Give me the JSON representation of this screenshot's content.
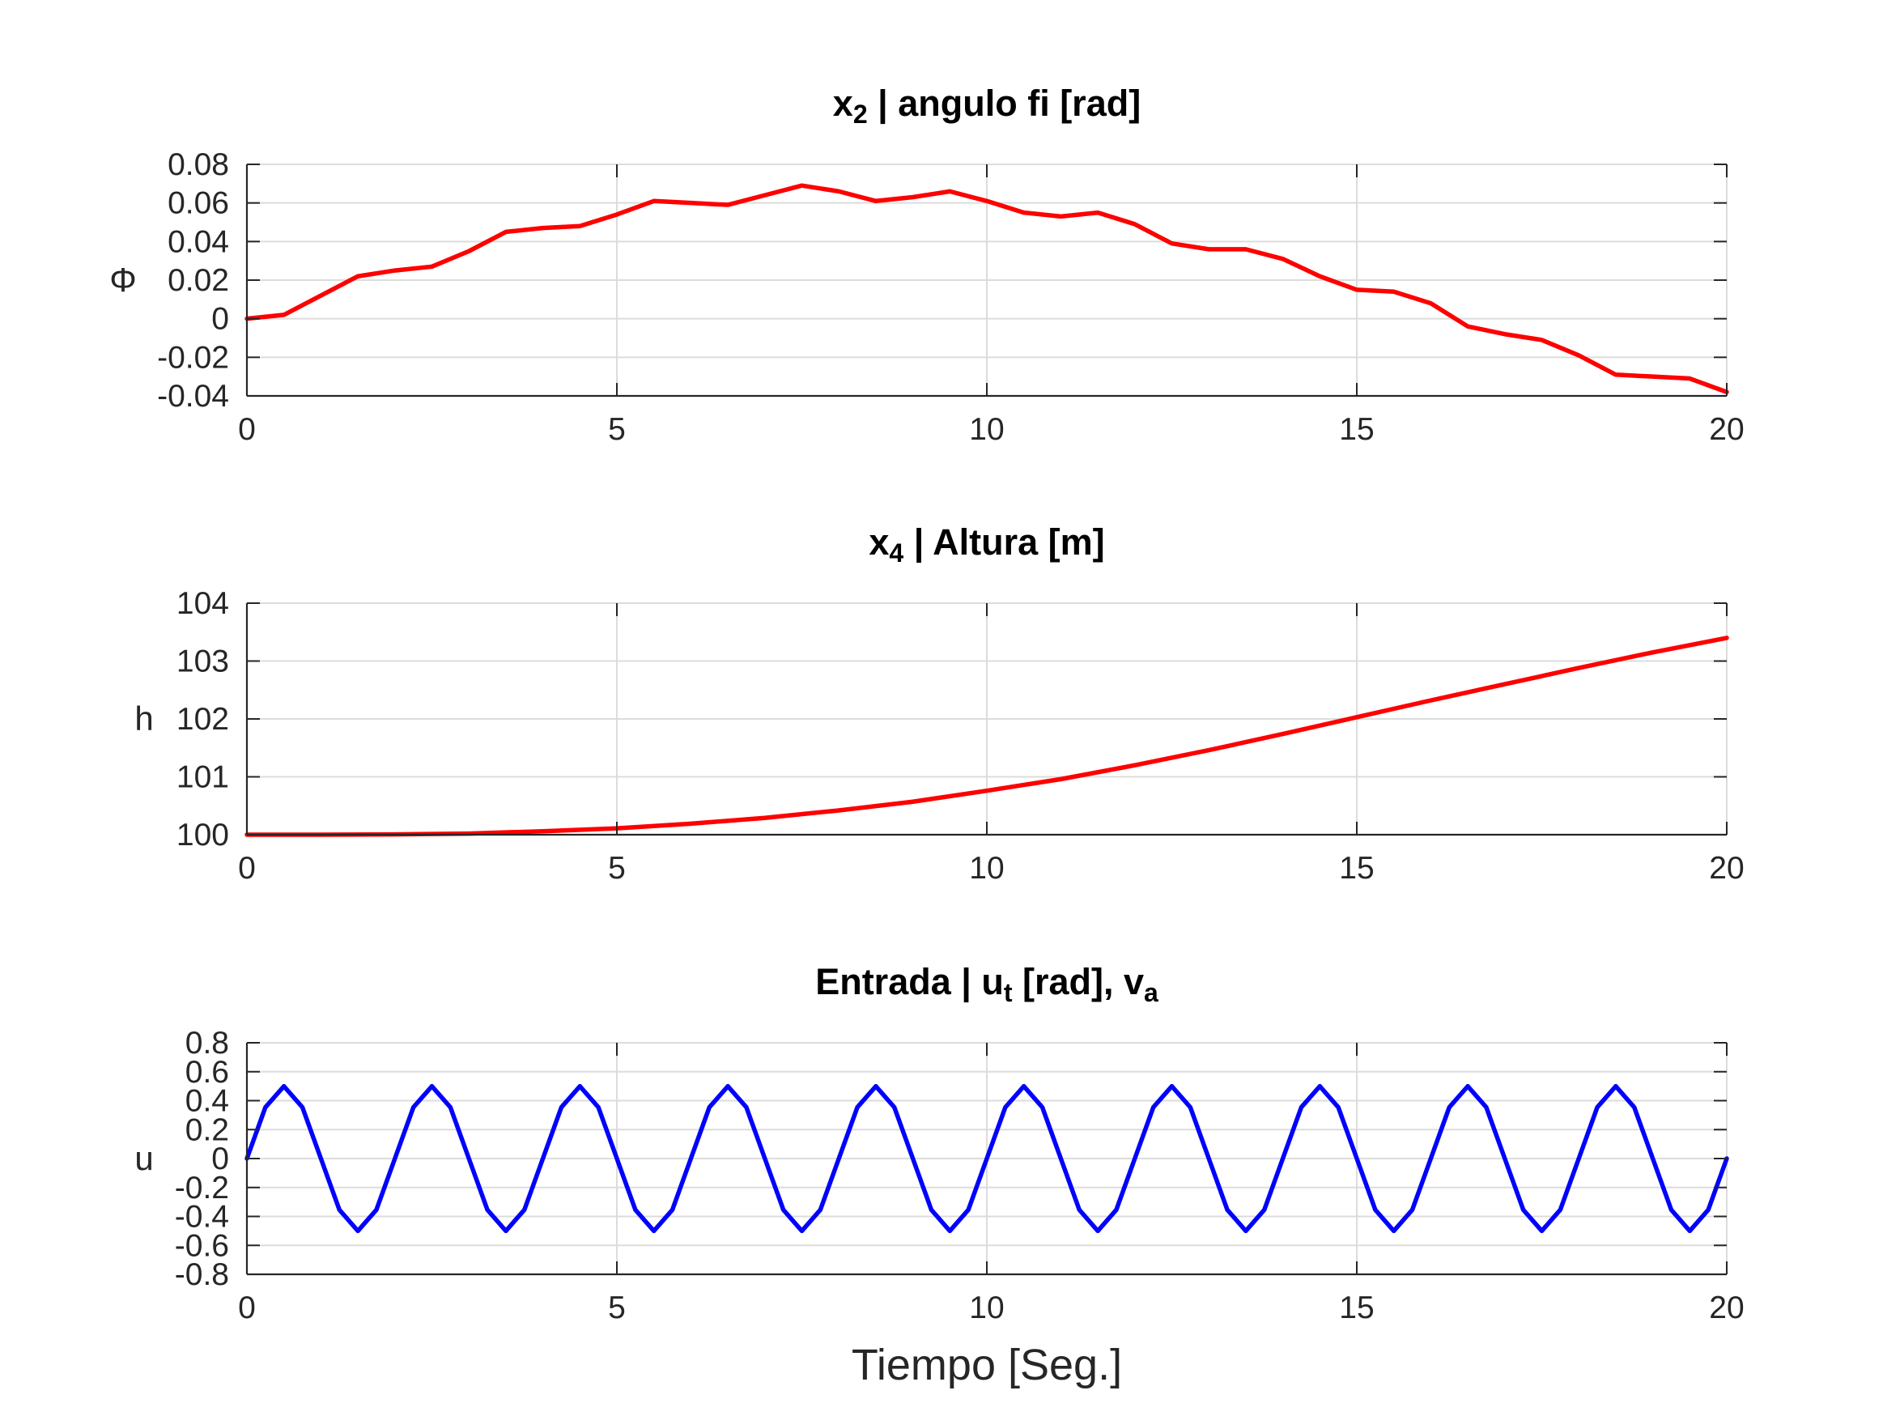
{
  "chart_data": [
    {
      "type": "line",
      "title_parts": [
        {
          "text": "x",
          "sub": false
        },
        {
          "text": "2",
          "sub": true
        },
        {
          "text": " | angulo fi [rad]",
          "sub": false
        }
      ],
      "xlabel": "",
      "ylabel": "Φ",
      "xlim": [
        0,
        20
      ],
      "ylim": [
        -0.04,
        0.08
      ],
      "xticks": [
        0,
        5,
        10,
        15,
        20
      ],
      "xtick_labels": [
        "0",
        "5",
        "10",
        "15",
        "20"
      ],
      "yticks": [
        -0.04,
        -0.02,
        0,
        0.02,
        0.04,
        0.06,
        0.08
      ],
      "ytick_labels": [
        "-0.04",
        "-0.02",
        "0",
        "0.02",
        "0.04",
        "0.06",
        "0.08"
      ],
      "grid": true,
      "color": "#ff0000",
      "series": [
        {
          "x": [
            0,
            0.5,
            1.0,
            1.5,
            2.0,
            2.5,
            3.0,
            3.5,
            4.0,
            4.5,
            5.0,
            5.5,
            6.0,
            6.5,
            7.0,
            7.5,
            8.0,
            8.5,
            9.0,
            9.5,
            10.0,
            10.5,
            11.0,
            11.5,
            12.0,
            12.5,
            13.0,
            13.5,
            14.0,
            14.5,
            15.0,
            15.5,
            16.0,
            16.5,
            17.0,
            17.5,
            18.0,
            18.5,
            19.0,
            19.5,
            20.0
          ],
          "y": [
            0.0,
            0.002,
            0.012,
            0.022,
            0.025,
            0.027,
            0.035,
            0.045,
            0.047,
            0.048,
            0.054,
            0.061,
            0.06,
            0.059,
            0.064,
            0.069,
            0.066,
            0.061,
            0.063,
            0.066,
            0.061,
            0.055,
            0.053,
            0.055,
            0.049,
            0.039,
            0.036,
            0.036,
            0.031,
            0.022,
            0.015,
            0.014,
            0.008,
            -0.004,
            -0.008,
            -0.011,
            -0.019,
            -0.029,
            -0.03,
            -0.031,
            -0.038
          ]
        }
      ]
    },
    {
      "type": "line",
      "title_parts": [
        {
          "text": "x",
          "sub": false
        },
        {
          "text": "4",
          "sub": true
        },
        {
          "text": " | Altura [m]",
          "sub": false
        }
      ],
      "xlabel": "",
      "ylabel": "h",
      "xlim": [
        0,
        20
      ],
      "ylim": [
        100,
        104
      ],
      "xticks": [
        0,
        5,
        10,
        15,
        20
      ],
      "xtick_labels": [
        "0",
        "5",
        "10",
        "15",
        "20"
      ],
      "yticks": [
        100,
        101,
        102,
        103,
        104
      ],
      "ytick_labels": [
        "100",
        "101",
        "102",
        "103",
        "104"
      ],
      "grid": true,
      "color": "#ff0000",
      "series": [
        {
          "x": [
            0,
            1,
            2,
            3,
            4,
            5,
            6,
            7,
            8,
            9,
            10,
            11,
            12,
            13,
            14,
            15,
            16,
            17,
            18,
            19,
            20
          ],
          "y": [
            100.0,
            100.0,
            100.005,
            100.02,
            100.06,
            100.11,
            100.19,
            100.29,
            100.42,
            100.57,
            100.76,
            100.96,
            101.2,
            101.46,
            101.74,
            102.03,
            102.32,
            102.6,
            102.88,
            103.15,
            103.4
          ]
        }
      ]
    },
    {
      "type": "line",
      "title_parts": [
        {
          "text": "Entrada | u",
          "sub": false
        },
        {
          "text": "t",
          "sub": true
        },
        {
          "text": " [rad], v",
          "sub": false
        },
        {
          "text": "a",
          "sub": true
        }
      ],
      "xlabel": "Tiempo [Seg.]",
      "ylabel": "u",
      "xlim": [
        0,
        20
      ],
      "ylim": [
        -0.8,
        0.8
      ],
      "xticks": [
        0,
        5,
        10,
        15,
        20
      ],
      "xtick_labels": [
        "0",
        "5",
        "10",
        "15",
        "20"
      ],
      "yticks": [
        -0.8,
        -0.6,
        -0.4,
        -0.2,
        0,
        0.2,
        0.4,
        0.6,
        0.8
      ],
      "ytick_labels": [
        "-0.8",
        "-0.6",
        "-0.4",
        "-0.2",
        "0",
        "0.2",
        "0.4",
        "0.6",
        "0.8"
      ],
      "grid": true,
      "color": "#0000ff",
      "series": [
        {
          "x": [
            0,
            0.25,
            0.5,
            0.75,
            1.0,
            1.25,
            1.5,
            1.75,
            2.0,
            2.25,
            2.5,
            2.75,
            3.0,
            3.25,
            3.5,
            3.75,
            4.0,
            4.25,
            4.5,
            4.75,
            5.0,
            5.25,
            5.5,
            5.75,
            6.0,
            6.25,
            6.5,
            6.75,
            7.0,
            7.25,
            7.5,
            7.75,
            8.0,
            8.25,
            8.5,
            8.75,
            9.0,
            9.25,
            9.5,
            9.75,
            10.0,
            10.25,
            10.5,
            10.75,
            11.0,
            11.25,
            11.5,
            11.75,
            12.0,
            12.25,
            12.5,
            12.75,
            13.0,
            13.25,
            13.5,
            13.75,
            14.0,
            14.25,
            14.5,
            14.75,
            15.0,
            15.25,
            15.5,
            15.75,
            16.0,
            16.25,
            16.5,
            16.75,
            17.0,
            17.25,
            17.5,
            17.75,
            18.0,
            18.25,
            18.5,
            18.75,
            19.0,
            19.25,
            19.5,
            19.75,
            20.0
          ],
          "y": [
            0.0,
            0.354,
            0.5,
            0.354,
            0.0,
            -0.354,
            -0.5,
            -0.354,
            0.0,
            0.354,
            0.5,
            0.354,
            0.0,
            -0.354,
            -0.5,
            -0.354,
            0.0,
            0.354,
            0.5,
            0.354,
            0.0,
            -0.354,
            -0.5,
            -0.354,
            0.0,
            0.354,
            0.5,
            0.354,
            0.0,
            -0.354,
            -0.5,
            -0.354,
            0.0,
            0.354,
            0.5,
            0.354,
            0.0,
            -0.354,
            -0.5,
            -0.354,
            0.0,
            0.354,
            0.5,
            0.354,
            0.0,
            -0.354,
            -0.5,
            -0.354,
            0.0,
            0.354,
            0.5,
            0.354,
            0.0,
            -0.354,
            -0.5,
            -0.354,
            0.0,
            0.354,
            0.5,
            0.354,
            0.0,
            -0.354,
            -0.5,
            -0.354,
            0.0,
            0.354,
            0.5,
            0.354,
            0.0,
            -0.354,
            -0.5,
            -0.354,
            0.0,
            0.354,
            0.5,
            0.354,
            0.0,
            -0.354,
            -0.5,
            -0.354,
            0.0
          ]
        }
      ]
    }
  ]
}
